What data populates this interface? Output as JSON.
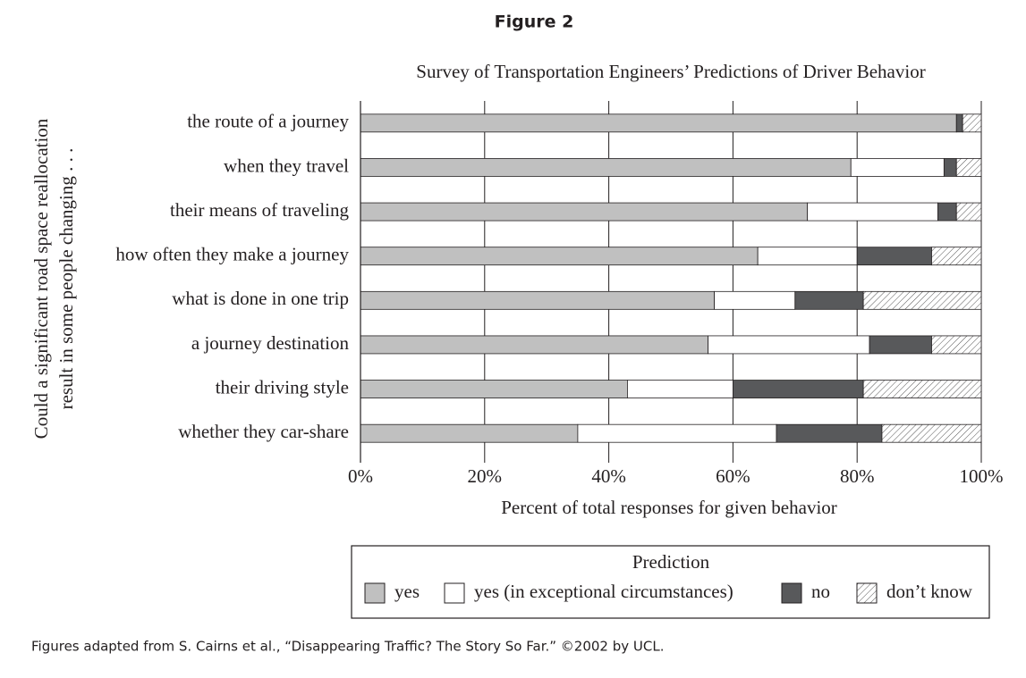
{
  "figure_title": "Figure 2",
  "caption": "Figures adapted from S. Cairns et al., “Disappearing Traffic? The Story So Far.” ©2002 by UCL.",
  "chart_data": {
    "type": "stacked-barh",
    "title": "Survey of Transportation Engineers’ Predictions of Driver Behavior",
    "y_label": [
      "Could a significant road space reallocation",
      "result in some people changing . . ."
    ],
    "x_label": "Percent of total responses for given behavior",
    "legend_title": "Prediction",
    "categories": [
      "the route of a journey",
      "when they travel",
      "their means of traveling",
      "how often they make a journey",
      "what is done in one trip",
      "a journey destination",
      "their driving style",
      "whether they car-share"
    ],
    "series": [
      {
        "name": "yes",
        "color": "#c0c0c0",
        "values": [
          96,
          79,
          72,
          64,
          57,
          56,
          43,
          35
        ]
      },
      {
        "name": "yes (in exceptional circumstances)",
        "color": "#ffffff",
        "values": [
          0,
          15,
          21,
          16,
          13,
          26,
          17,
          32
        ]
      },
      {
        "name": "no",
        "color": "#58595b",
        "values": [
          1,
          2,
          3,
          12,
          11,
          10,
          21,
          17
        ]
      },
      {
        "name": "don’t know",
        "color": "#ffffff",
        "pattern": "hatch",
        "values": [
          3,
          4,
          4,
          8,
          19,
          8,
          19,
          16
        ]
      }
    ],
    "xlim": [
      0,
      100
    ],
    "xticks": [
      {
        "value": 0,
        "label": "0%"
      },
      {
        "value": 20,
        "label": "20%"
      },
      {
        "value": 40,
        "label": "40%"
      },
      {
        "value": 60,
        "label": "60%"
      },
      {
        "value": 80,
        "label": "80%"
      },
      {
        "value": 100,
        "label": "100%"
      }
    ],
    "grid": true
  }
}
